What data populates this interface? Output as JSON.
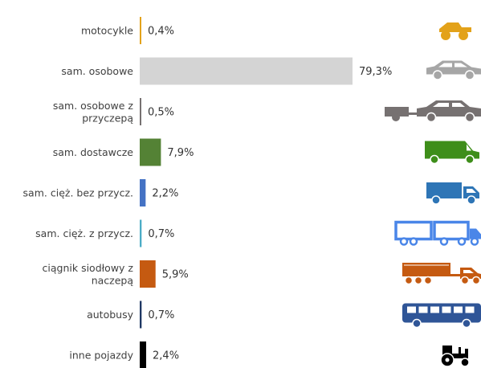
{
  "chart_data": {
    "type": "bar",
    "orientation": "horizontal",
    "categories": [
      [
        "motocykle"
      ],
      [
        "sam. osobowe"
      ],
      [
        "sam. osobowe z",
        "przyczepą"
      ],
      [
        "sam. dostawcze"
      ],
      [
        "sam. cięż. bez przycz."
      ],
      [
        "sam. cięż. z przycz."
      ],
      [
        "ciągnik siodłowy z",
        "naczepą"
      ],
      [
        "autobusy"
      ],
      [
        "inne pojazdy"
      ]
    ],
    "values": [
      0.4,
      79.3,
      0.5,
      7.9,
      2.2,
      0.7,
      5.9,
      0.7,
      2.4
    ],
    "value_labels": [
      "0,4%",
      "79,3%",
      "0,5%",
      "7,9%",
      "2,2%",
      "0,7%",
      "5,9%",
      "0,7%",
      "2,4%"
    ],
    "unit": "%",
    "xlim": [
      0,
      79.3
    ],
    "grid": false,
    "legend": "none",
    "colors": [
      "#E3A21A",
      "#D4D4D4",
      "#767171",
      "#548235",
      "#4472C4",
      "#4BACC6",
      "#C55A11",
      "#1F3864",
      "#000000"
    ],
    "icons": [
      "motorcycle-icon",
      "car-icon",
      "car-with-trailer-icon",
      "van-icon",
      "truck-icon",
      "truck-with-trailer-icon",
      "semi-trailer-truck-icon",
      "bus-icon",
      "tractor-icon"
    ],
    "icon_colors": [
      "#E3A21A",
      "#A6A6A6",
      "#767171",
      "#3E8E1A",
      "#2E75B6",
      "#4A86E8",
      "#C55A11",
      "#2F5597",
      "#000000"
    ]
  }
}
